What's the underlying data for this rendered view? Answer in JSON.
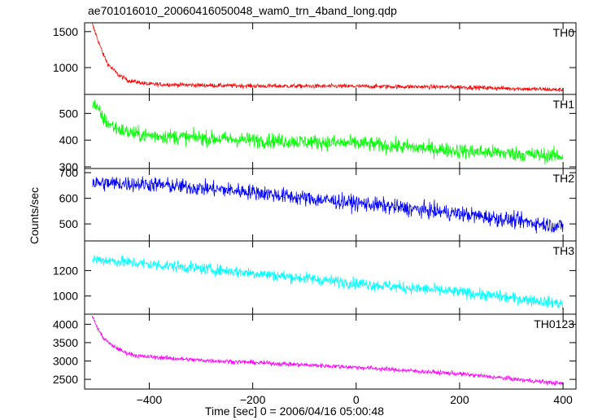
{
  "title": "ae701016010_20060416050048_wam0_trn_4band_long.qdp",
  "chart_data": {
    "type": "line",
    "title": "ae701016010_20060416050048_wam0_trn_4band_long.qdp",
    "xlabel": "Time [sec] 0 = 2006/04/16 05:00:48",
    "ylabel": "Counts/sec",
    "xlim": [
      -525,
      425
    ],
    "x_ticks": [
      -400,
      -200,
      0,
      200,
      400
    ],
    "x_tick_labels": [
      "−400",
      "−200",
      "0",
      "200",
      "400"
    ],
    "grid": false,
    "panels": [
      {
        "name": "TH0",
        "color": "#ff0000",
        "ylim": [
          650,
          1600
        ],
        "y_ticks": [
          1000,
          1500
        ],
        "y_tick_labels": [
          "1000",
          "1500"
        ],
        "x_start": -510,
        "x_end": 400,
        "trend": [
          [
            -510,
            1600
          ],
          [
            -500,
            1400
          ],
          [
            -490,
            1200
          ],
          [
            -480,
            1050
          ],
          [
            -460,
            900
          ],
          [
            -440,
            820
          ],
          [
            -400,
            770
          ],
          [
            -300,
            755
          ],
          [
            -200,
            745
          ],
          [
            0,
            740
          ],
          [
            200,
            730
          ],
          [
            400,
            690
          ]
        ],
        "noise": 30
      },
      {
        "name": "TH1",
        "color": "#00ff00",
        "ylim": [
          300,
          565
        ],
        "y_ticks": [
          300,
          400,
          500
        ],
        "y_tick_labels": [
          "300",
          "400",
          "500"
        ],
        "x_start": -510,
        "x_end": 400,
        "trend": [
          [
            -510,
            545
          ],
          [
            -500,
            515
          ],
          [
            -485,
            470
          ],
          [
            -460,
            440
          ],
          [
            -420,
            420
          ],
          [
            -300,
            408
          ],
          [
            -200,
            400
          ],
          [
            0,
            388
          ],
          [
            200,
            360
          ],
          [
            400,
            340
          ]
        ],
        "noise": 28
      },
      {
        "name": "TH2",
        "color": "#0000ff",
        "ylim": [
          440,
          710
        ],
        "y_ticks": [
          500,
          600,
          700
        ],
        "y_tick_labels": [
          "500",
          "600",
          "700"
        ],
        "x_start": -510,
        "x_end": 400,
        "trend": [
          [
            -510,
            660
          ],
          [
            -400,
            655
          ],
          [
            -300,
            640
          ],
          [
            -200,
            625
          ],
          [
            -100,
            600
          ],
          [
            0,
            582
          ],
          [
            100,
            560
          ],
          [
            200,
            540
          ],
          [
            300,
            515
          ],
          [
            400,
            490
          ]
        ],
        "noise": 30
      },
      {
        "name": "TH3",
        "color": "#00ffff",
        "ylim": [
          870,
          1420
        ],
        "y_ticks": [
          1000,
          1200
        ],
        "y_tick_labels": [
          "1000",
          "1200"
        ],
        "x_start": -510,
        "x_end": 400,
        "trend": [
          [
            -510,
            1290
          ],
          [
            -400,
            1250
          ],
          [
            -300,
            1215
          ],
          [
            -200,
            1180
          ],
          [
            -100,
            1140
          ],
          [
            0,
            1100
          ],
          [
            100,
            1065
          ],
          [
            200,
            1030
          ],
          [
            300,
            985
          ],
          [
            400,
            940
          ]
        ],
        "noise": 45
      },
      {
        "name": "TH0123",
        "color": "#ff00ff",
        "ylim": [
          2280,
          4230
        ],
        "y_ticks": [
          2500,
          3000,
          3500,
          4000
        ],
        "y_tick_labels": [
          "2500",
          "3000",
          "3500",
          "4000"
        ],
        "x_start": -510,
        "x_end": 400,
        "trend": [
          [
            -510,
            4200
          ],
          [
            -500,
            3900
          ],
          [
            -490,
            3650
          ],
          [
            -475,
            3450
          ],
          [
            -450,
            3250
          ],
          [
            -420,
            3130
          ],
          [
            -300,
            3020
          ],
          [
            -200,
            2960
          ],
          [
            0,
            2830
          ],
          [
            200,
            2650
          ],
          [
            400,
            2380
          ]
        ],
        "noise": 60
      }
    ]
  }
}
